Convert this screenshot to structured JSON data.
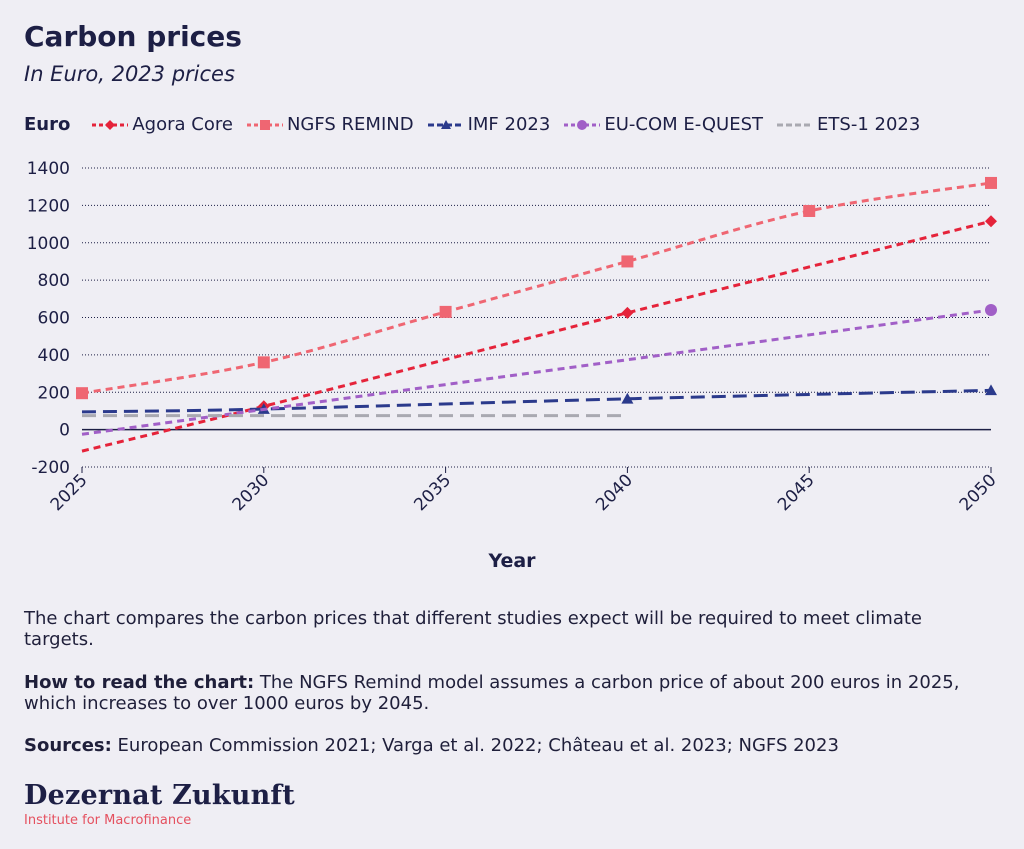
{
  "header": {
    "title": "Carbon prices",
    "subtitle": "In Euro, 2023 prices"
  },
  "chart_data": {
    "type": "line",
    "title": "Carbon prices",
    "subtitle": "In Euro, 2023 prices",
    "xlabel": "Year",
    "ylabel": "Euro",
    "xlim": [
      2025,
      2050
    ],
    "ylim": [
      -200,
      1400
    ],
    "x_ticks": [
      2025,
      2030,
      2035,
      2040,
      2045,
      2050
    ],
    "y_ticks": [
      -200,
      0,
      200,
      400,
      600,
      800,
      1000,
      1200,
      1400
    ],
    "grid": "horizontal dotted",
    "legend_position": "top",
    "series": [
      {
        "name": "Agora Core",
        "color": "#e5233a",
        "marker": "diamond",
        "dash": "dashed",
        "x": [
          2025,
          2030,
          2040,
          2050
        ],
        "y": [
          -115,
          125,
          625,
          1115
        ]
      },
      {
        "name": "NGFS REMIND",
        "color": "#ef6672",
        "marker": "square",
        "dash": "dashed",
        "x": [
          2025,
          2030,
          2035,
          2040,
          2045,
          2050
        ],
        "y": [
          195,
          360,
          630,
          900,
          1170,
          1320
        ]
      },
      {
        "name": "IMF 2023",
        "color": "#2b3a8c",
        "marker": "triangle",
        "dash": "longdash",
        "x": [
          2025,
          2030,
          2040,
          2050
        ],
        "y": [
          95,
          110,
          165,
          210
        ]
      },
      {
        "name": "EU-COM E-QUEST",
        "color": "#a15fc7",
        "marker": "circle",
        "dash": "dashed",
        "x": [
          2025,
          2050
        ],
        "y": [
          -25,
          640
        ]
      },
      {
        "name": "ETS-1 2023",
        "color": "#a9a9b1",
        "marker": "none",
        "dash": "longdash",
        "x": [
          2025,
          2040
        ],
        "y": [
          75,
          75
        ]
      }
    ]
  },
  "text": {
    "description": "The chart compares the carbon prices that different studies expect will be required to meet climate targets.",
    "howto_label": "How to read the chart:",
    "howto_text": " The NGFS Remind model assumes a carbon price of about 200 euros in 2025, which increases to over 1000 euros by 2045.",
    "sources_label": "Sources:",
    "sources_text": " European Commission 2021; Varga et al. 2022; Château et al. 2023; NGFS 2023"
  },
  "footer": {
    "logo": "Dezernat Zukunft",
    "tagline": "Institute for Macrofinance"
  }
}
